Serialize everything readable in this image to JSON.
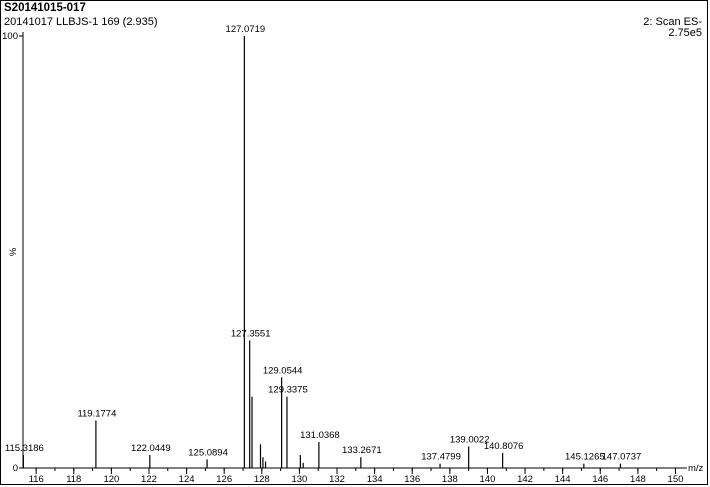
{
  "header": {
    "title": "S20141015-017",
    "subtitle": "20141017 LLBJS-1 169 (2.935)",
    "scan_label": "2: Scan ES-",
    "scale": "2.75e5"
  },
  "chart_data": {
    "type": "bar",
    "title": "S20141015-017",
    "xlabel": "m/z",
    "ylabel": "%",
    "xlim": [
      115.3,
      150.4
    ],
    "ylim": [
      0,
      100
    ],
    "x_ticks": [
      116,
      118,
      120,
      122,
      124,
      126,
      128,
      130,
      132,
      134,
      136,
      138,
      140,
      142,
      144,
      146,
      148,
      150
    ],
    "y_ticks": [
      0,
      100
    ],
    "grid": false,
    "peaks": [
      {
        "x": 115.3186,
        "y": 3.0,
        "label": "115.3186"
      },
      {
        "x": 119.1774,
        "y": 11.0,
        "label": "119.1774"
      },
      {
        "x": 122.0449,
        "y": 3.0,
        "label": "122.0449"
      },
      {
        "x": 125.0894,
        "y": 2.0,
        "label": "125.0894"
      },
      {
        "x": 127.0719,
        "y": 100.0,
        "label": "127.0719"
      },
      {
        "x": 127.3551,
        "y": 29.5,
        "label": "127.3551"
      },
      {
        "x": 127.48,
        "y": 16.5,
        "label": ""
      },
      {
        "x": 127.93,
        "y": 5.5,
        "label": ""
      },
      {
        "x": 128.06,
        "y": 2.5,
        "label": ""
      },
      {
        "x": 128.2,
        "y": 1.5,
        "label": ""
      },
      {
        "x": 129.0544,
        "y": 21.0,
        "label": "129.0544"
      },
      {
        "x": 129.3375,
        "y": 16.5,
        "label": "129.3375"
      },
      {
        "x": 130.05,
        "y": 3.0,
        "label": ""
      },
      {
        "x": 130.2,
        "y": 1.2,
        "label": ""
      },
      {
        "x": 131.0368,
        "y": 6.0,
        "label": "131.0368"
      },
      {
        "x": 133.2671,
        "y": 2.5,
        "label": "133.2671"
      },
      {
        "x": 137.4799,
        "y": 1.0,
        "label": "137.4799"
      },
      {
        "x": 139.0022,
        "y": 5.0,
        "label": "139.0022"
      },
      {
        "x": 140.8076,
        "y": 3.5,
        "label": "140.8076"
      },
      {
        "x": 145.1265,
        "y": 1.0,
        "label": "145.1265"
      },
      {
        "x": 147.0737,
        "y": 1.0,
        "label": "147.0737"
      }
    ]
  }
}
